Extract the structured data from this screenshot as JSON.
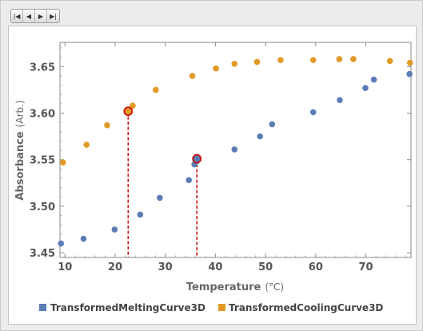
{
  "toolbar": {
    "buttons": [
      {
        "name": "first-frame-button",
        "glyph": "|◀"
      },
      {
        "name": "previous-frame-button",
        "glyph": "◀"
      },
      {
        "name": "next-frame-button",
        "glyph": "▶"
      },
      {
        "name": "last-frame-button",
        "glyph": "▶|"
      }
    ]
  },
  "chart_data": {
    "type": "scatter",
    "title": "",
    "xlabel": "Temperature",
    "xlabel_unit": "(°C)",
    "ylabel": "Absorbance",
    "ylabel_unit": "(Arb.)",
    "xlim": [
      9,
      79
    ],
    "ylim": [
      3.445,
      3.676
    ],
    "xticks": [
      10,
      20,
      30,
      40,
      50,
      60,
      70
    ],
    "yticks": [
      3.45,
      3.5,
      3.55,
      3.6,
      3.65
    ],
    "ytick_labels": [
      "3.45",
      "3.50",
      "3.55",
      "3.60",
      "3.65"
    ],
    "legend_position": "bottom",
    "series": [
      {
        "name": "TransformedMeltingCurve3D",
        "color": "#5a7db5",
        "points": [
          [
            9.2,
            3.46
          ],
          [
            13.7,
            3.465
          ],
          [
            19.9,
            3.475
          ],
          [
            25.0,
            3.491
          ],
          [
            28.9,
            3.509
          ],
          [
            34.7,
            3.528
          ],
          [
            35.8,
            3.545
          ],
          [
            36.2,
            3.548
          ],
          [
            43.8,
            3.561
          ],
          [
            48.9,
            3.575
          ],
          [
            51.3,
            3.588
          ],
          [
            59.5,
            3.601
          ],
          [
            64.8,
            3.614
          ],
          [
            69.9,
            3.627
          ],
          [
            71.6,
            3.636
          ],
          [
            78.7,
            3.642
          ]
        ]
      },
      {
        "name": "TransformedCoolingCurve3D",
        "color": "#e09a25",
        "points": [
          [
            9.6,
            3.547
          ],
          [
            14.3,
            3.566
          ],
          [
            18.4,
            3.587
          ],
          [
            22.6,
            3.602
          ],
          [
            23.5,
            3.608
          ],
          [
            28.1,
            3.625
          ],
          [
            35.4,
            3.64
          ],
          [
            40.1,
            3.648
          ],
          [
            43.8,
            3.653
          ],
          [
            48.3,
            3.655
          ],
          [
            53.0,
            3.657
          ],
          [
            59.5,
            3.657
          ],
          [
            64.7,
            3.658
          ],
          [
            67.5,
            3.658
          ],
          [
            74.8,
            3.656
          ],
          [
            78.8,
            3.654
          ]
        ]
      }
    ],
    "highlights": [
      {
        "x": 22.6,
        "y": 3.602,
        "fill": "#e09a25",
        "stroke": "#cc1111"
      },
      {
        "x": 36.3,
        "y": 3.551,
        "fill": "#5a7db5",
        "stroke": "#cc1111"
      }
    ],
    "marker_lines_color": "#cc1111"
  }
}
